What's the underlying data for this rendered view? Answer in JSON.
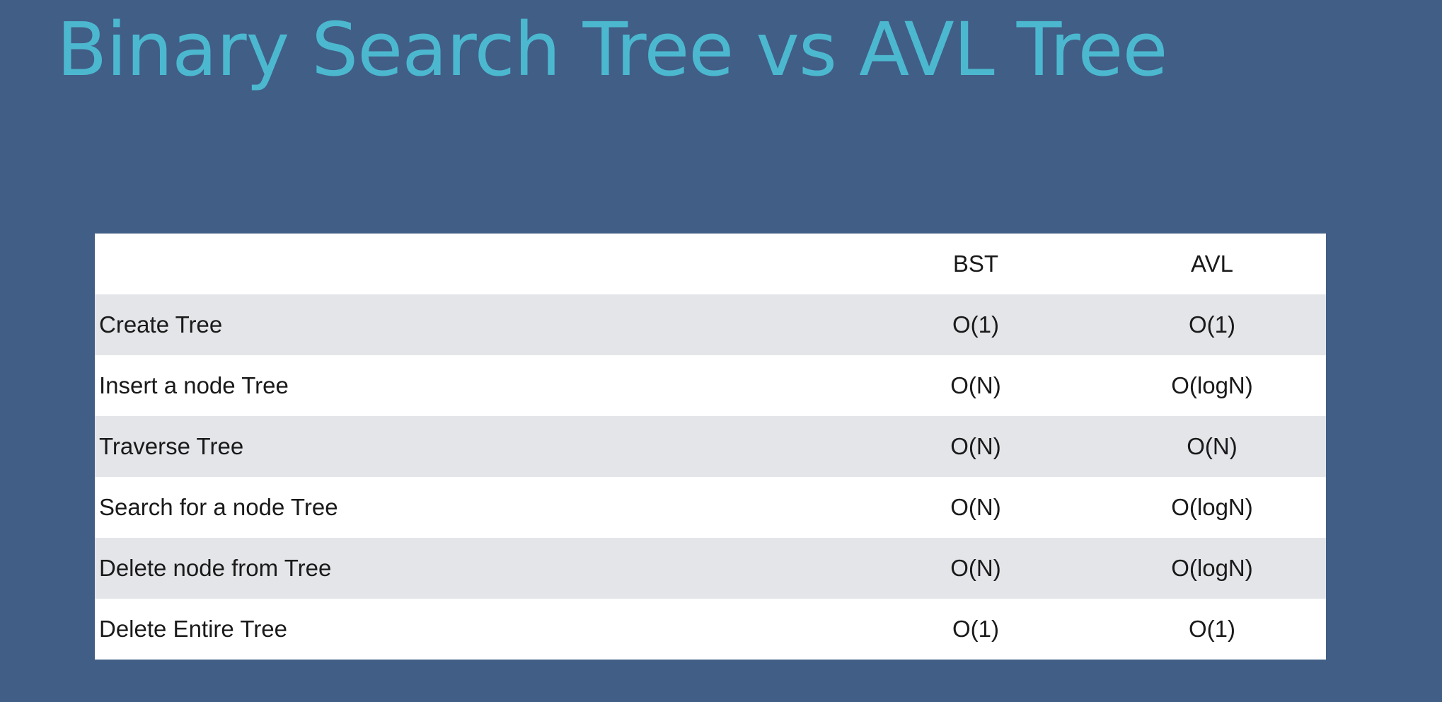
{
  "slide": {
    "title": "Binary Search Tree vs AVL Tree"
  },
  "table": {
    "headers": [
      "",
      "BST",
      "AVL"
    ],
    "rows": [
      {
        "operation": "Create Tree",
        "bst": "O(1)",
        "avl": "O(1)"
      },
      {
        "operation": "Insert a node Tree",
        "bst": "O(N)",
        "avl": "O(logN)"
      },
      {
        "operation": "Traverse Tree",
        "bst": "O(N)",
        "avl": "O(N)"
      },
      {
        "operation": "Search for a node Tree",
        "bst": "O(N)",
        "avl": "O(logN)"
      },
      {
        "operation": "Delete node from Tree",
        "bst": "O(N)",
        "avl": "O(logN)"
      },
      {
        "operation": "Delete Entire Tree",
        "bst": "O(1)",
        "avl": "O(1)"
      }
    ]
  },
  "colors": {
    "background": "#415e86",
    "title": "#4cb8cf",
    "row_shaded": "#e4e5e9",
    "row_plain": "#ffffff"
  }
}
